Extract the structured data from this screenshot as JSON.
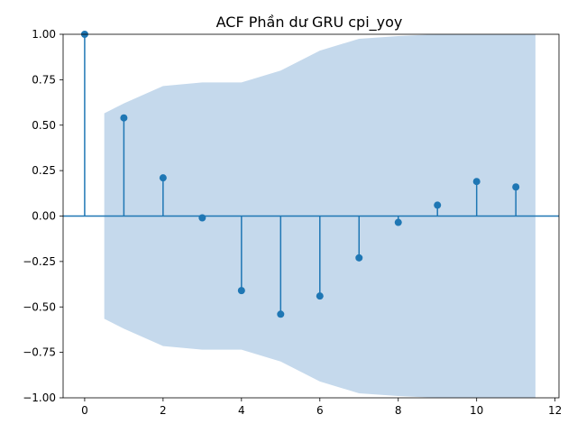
{
  "chart_data": {
    "type": "stem",
    "title": "ACF Phần dư GRU cpi_yoy",
    "xlabel": "",
    "ylabel": "",
    "xlim": [
      -0.55,
      12.1
    ],
    "ylim": [
      -1.0,
      1.0
    ],
    "xticks": [
      0,
      2,
      4,
      6,
      8,
      10,
      12
    ],
    "yticks": [
      -1.0,
      -0.75,
      -0.5,
      -0.25,
      0.0,
      0.25,
      0.5,
      0.75,
      1.0
    ],
    "ytick_labels": [
      "−1.00",
      "−0.75",
      "−0.50",
      "−0.25",
      "0.00",
      "0.25",
      "0.50",
      "0.75",
      "1.00"
    ],
    "grid": false,
    "series": [
      {
        "lags": [
          0,
          1,
          2,
          3,
          4,
          5,
          6,
          7,
          8,
          9,
          10,
          11
        ],
        "values": [
          1.0,
          0.54,
          0.21,
          -0.01,
          -0.41,
          -0.54,
          -0.44,
          -0.23,
          -0.035,
          0.06,
          0.19,
          0.16
        ],
        "color": "#1f77b4"
      }
    ],
    "confidence_band": {
      "x": [
        0.5,
        1,
        2,
        3,
        4,
        5,
        6,
        7,
        8,
        9,
        10,
        11,
        11.5
      ],
      "upper": [
        0.565,
        0.62,
        0.715,
        0.735,
        0.735,
        0.8,
        0.91,
        0.975,
        0.99,
        1.0,
        1.0,
        1.0,
        1.0
      ],
      "color": "#c5d9ec"
    }
  }
}
